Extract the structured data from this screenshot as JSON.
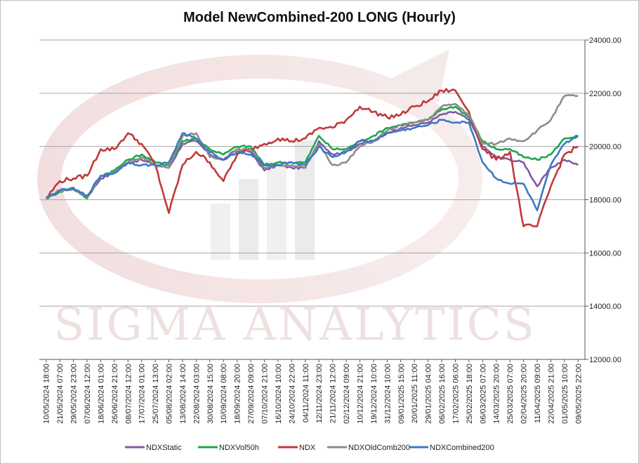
{
  "chart_data": {
    "type": "line",
    "title": "Model NewCombined-200 LONG (Hourly)",
    "watermark": "SIGMA ANALYTICS",
    "ylim": [
      12000,
      24000
    ],
    "yticks": [
      "12000.00",
      "14000.00",
      "16000.00",
      "18000.00",
      "20000.00",
      "22000.00",
      "24000.00"
    ],
    "grid": true,
    "legend_position": "bottom",
    "colors": {
      "NDXStatic": "#7f5ba6",
      "NDXVol50h": "#19a84a",
      "NDX": "#c0393b",
      "NDXOldComb200": "#8c8c8c",
      "NDXCombined200": "#3d78c4"
    },
    "x": [
      "10/05/2024 18:00",
      "21/05/2024 07:00",
      "29/05/2024 23:00",
      "07/06/2024 12:00",
      "18/06/2024 01:00",
      "26/06/2024 21:00",
      "08/07/2024 12:00",
      "17/07/2024 01:00",
      "25/07/2024 13:00",
      "05/08/2024 02:00",
      "13/08/2024 14:00",
      "22/08/2024 03:00",
      "30/08/2024 15:00",
      "10/09/2024 08:00",
      "18/09/2024 20:00",
      "27/09/2024 09:00",
      "07/10/2024 21:00",
      "16/10/2024 10:00",
      "24/10/2024 22:00",
      "04/11/2024 11:00",
      "12/11/2024 23:00",
      "21/11/2024 12:00",
      "02/12/2024 09:00",
      "10/12/2024 21:00",
      "19/12/2024 10:00",
      "31/12/2024 10:00",
      "09/01/2025 15:00",
      "20/01/2025 11:00",
      "29/01/2025 04:00",
      "06/02/2025 16:00",
      "17/02/2025 06:00",
      "25/02/2025 18:00",
      "06/03/2025 07:00",
      "14/03/2025 20:00",
      "25/03/2025 07:00",
      "02/04/2025 20:00",
      "11/04/2025 09:00",
      "22/04/2025 21:00",
      "01/05/2025 10:00",
      "09/05/2025 22:00"
    ],
    "series": [
      {
        "name": "NDXStatic",
        "values": [
          18050,
          18350,
          18400,
          18100,
          18800,
          19000,
          19400,
          19500,
          19300,
          19200,
          20100,
          20200,
          19700,
          19500,
          19900,
          19800,
          19100,
          19300,
          19200,
          19200,
          20200,
          19700,
          19800,
          20100,
          20200,
          20500,
          20700,
          20800,
          20900,
          21200,
          21300,
          21000,
          20000,
          19600,
          19500,
          19400,
          18500,
          19200,
          19500,
          19300
        ]
      },
      {
        "name": "NDXVol50h",
        "values": [
          18050,
          18300,
          18450,
          18050,
          18900,
          19100,
          19500,
          19700,
          19400,
          19300,
          20200,
          20300,
          19900,
          19700,
          20000,
          20000,
          19300,
          19400,
          19400,
          19400,
          20400,
          19900,
          19900,
          20200,
          20400,
          20700,
          20800,
          20900,
          21000,
          21400,
          21500,
          21100,
          20200,
          19900,
          19900,
          19600,
          19500,
          19700,
          20300,
          20400
        ]
      },
      {
        "name": "NDX",
        "values": [
          18050,
          18700,
          18800,
          18900,
          19900,
          19900,
          20500,
          20100,
          19300,
          17500,
          19300,
          19800,
          19400,
          18700,
          19700,
          19900,
          20100,
          20300,
          20200,
          20300,
          20700,
          20700,
          21000,
          21500,
          21300,
          21100,
          21200,
          21500,
          21700,
          22100,
          22100,
          21300,
          19900,
          19500,
          19800,
          17000,
          17000,
          18500,
          19700,
          20000
        ]
      },
      {
        "name": "NDXOldComb200",
        "values": [
          18050,
          18350,
          18400,
          18100,
          18900,
          19050,
          19400,
          19600,
          19300,
          19200,
          20400,
          20500,
          19600,
          19500,
          19900,
          19900,
          19200,
          19300,
          19300,
          19200,
          20100,
          19300,
          19400,
          20000,
          20200,
          20600,
          20800,
          20900,
          21000,
          21500,
          21600,
          21200,
          20100,
          20100,
          20300,
          20200,
          20600,
          21000,
          21900,
          21900
        ]
      },
      {
        "name": "NDXCombined200",
        "values": [
          18050,
          18350,
          18400,
          18150,
          18900,
          19000,
          19400,
          19300,
          19300,
          19400,
          20500,
          20300,
          19800,
          19500,
          19800,
          19700,
          19300,
          19300,
          19400,
          19300,
          20000,
          19600,
          19800,
          20200,
          20200,
          20500,
          20600,
          20700,
          20800,
          21000,
          20900,
          20900,
          19400,
          18800,
          18600,
          18600,
          17600,
          19300,
          20100,
          20400
        ]
      }
    ]
  }
}
